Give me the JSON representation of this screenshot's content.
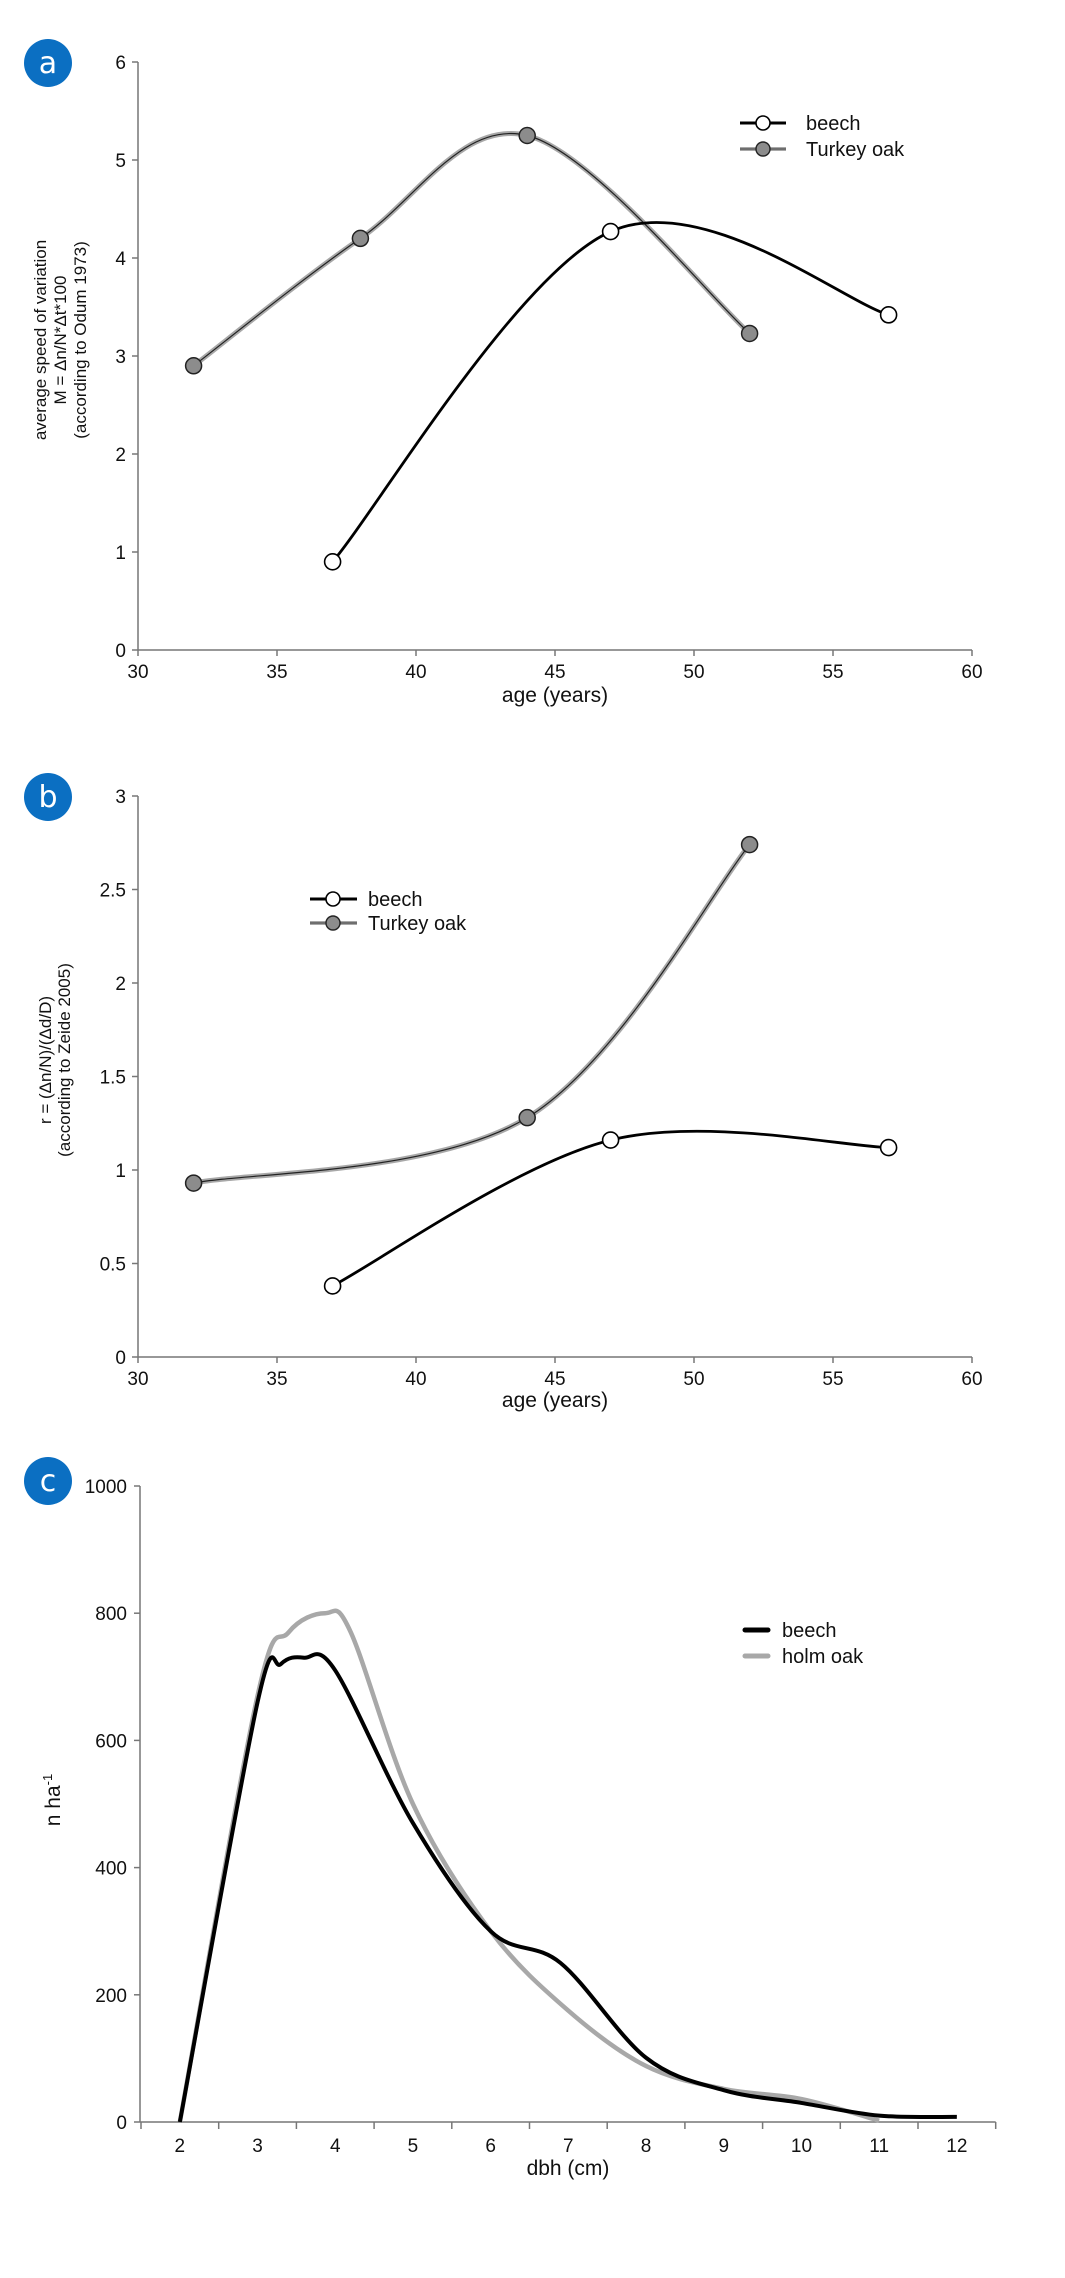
{
  "colors": {
    "badge": "#0b6fc2",
    "beech": "#000000",
    "oak_line": "#a8a8a8",
    "oak_marker": "#8c8c8c",
    "axis": "#777777"
  },
  "chart_data": [
    {
      "panel": "a",
      "type": "line",
      "xlabel": "age (years)",
      "ylabel_lines": [
        "average speed of variation",
        "M = Δn/N*Δt*100",
        "(according to Odum 1973)"
      ],
      "xlim": [
        30,
        60
      ],
      "ylim": [
        0,
        6
      ],
      "xticks": [
        "30",
        "35",
        "40",
        "45",
        "50",
        "55",
        "60"
      ],
      "yticks": [
        "0",
        "1",
        "2",
        "3",
        "4",
        "5",
        "6"
      ],
      "legend_position": "top-right",
      "series": [
        {
          "name": "beech",
          "x": [
            37,
            47,
            57
          ],
          "y": [
            0.9,
            4.27,
            3.42
          ]
        },
        {
          "name": "Turkey oak",
          "x": [
            32,
            38,
            44,
            52
          ],
          "y": [
            2.9,
            4.2,
            5.25,
            3.23
          ]
        }
      ]
    },
    {
      "panel": "b",
      "type": "line",
      "xlabel": "age (years)",
      "ylabel_lines": [
        "r = (Δn/N)/(Δd/D)",
        "(according to Zeide 2005)"
      ],
      "xlim": [
        30,
        60
      ],
      "ylim": [
        0,
        3
      ],
      "xticks": [
        "30",
        "35",
        "40",
        "45",
        "50",
        "55",
        "60"
      ],
      "yticks": [
        "0",
        "0.5",
        "1",
        "1.5",
        "2",
        "2.5",
        "3"
      ],
      "legend_position": "top-left",
      "series": [
        {
          "name": "beech",
          "x": [
            37,
            47,
            57
          ],
          "y": [
            0.38,
            1.16,
            1.12
          ]
        },
        {
          "name": "Turkey oak",
          "x": [
            32,
            44,
            52
          ],
          "y": [
            0.93,
            1.28,
            2.74
          ]
        }
      ]
    },
    {
      "panel": "c",
      "type": "line",
      "xlabel": "dbh (cm)",
      "ylabel": "n ha",
      "ylabel_sup": "-1",
      "categories": [
        "2",
        "3",
        "4",
        "5",
        "6",
        "7",
        "8",
        "9",
        "10",
        "11",
        "12"
      ],
      "ylim": [
        0,
        1000
      ],
      "yticks": [
        "0",
        "200",
        "400",
        "600",
        "800",
        "1000"
      ],
      "legend_position": "top-right",
      "series": [
        {
          "name": "beech",
          "x": [
            2,
            3,
            3.3,
            3.6,
            4,
            5,
            6,
            6.9,
            8,
            9,
            10,
            11,
            12
          ],
          "y": [
            0,
            660,
            720,
            730,
            710,
            470,
            300,
            250,
            101,
            50,
            30,
            10,
            8
          ]
        },
        {
          "name": "holm oak",
          "x": [
            2,
            3,
            3.4,
            3.87,
            4.2,
            5,
            6,
            7,
            8,
            9,
            10,
            11
          ],
          "y": [
            0,
            670,
            770,
            800,
            770,
            500,
            300,
            175,
            88,
            52,
            36,
            2
          ]
        }
      ]
    }
  ]
}
